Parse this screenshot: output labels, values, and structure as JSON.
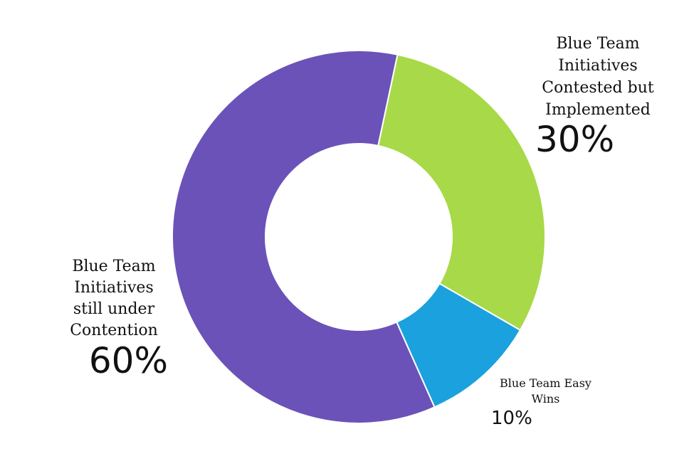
{
  "chart_data": {
    "type": "pie",
    "title": "",
    "categories": [
      "Blue Team Initiatives Contested but Implemented",
      "Blue Team Easy Wins",
      "Blue Team Initiatives still under Contention"
    ],
    "values": [
      30,
      10,
      60
    ],
    "value_labels": [
      "30%",
      "10%",
      "60%"
    ],
    "colors": [
      "#a8d948",
      "#1ba1dd",
      "#6b52b8"
    ],
    "donut": true,
    "legend": "none",
    "label_lines": [
      [
        "Blue Team",
        "Initiatives",
        "Contested but",
        "Implemented"
      ],
      [
        "Blue Team Easy",
        "Wins"
      ],
      [
        "Blue Team",
        "Initiatives",
        "still under",
        "Contention"
      ]
    ]
  }
}
